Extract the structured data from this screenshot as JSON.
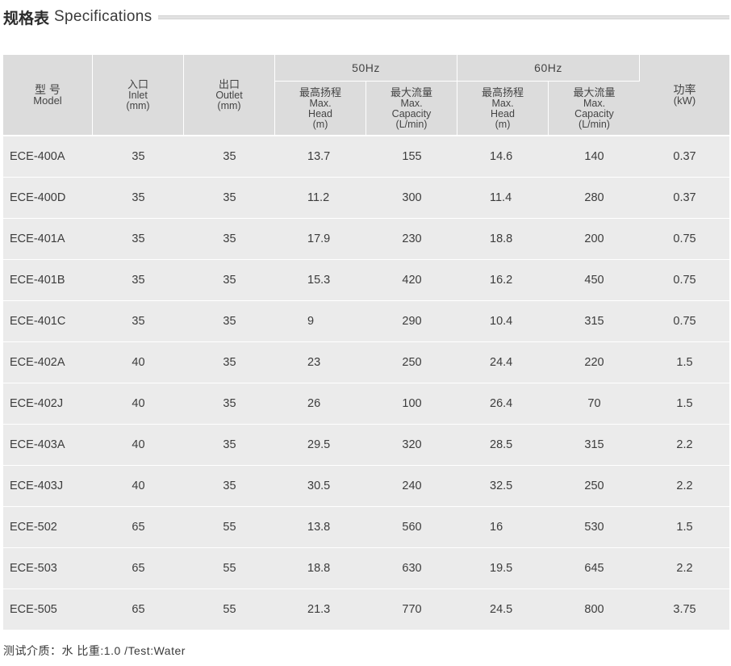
{
  "title": {
    "cn": "规格表",
    "en": "Specifications"
  },
  "header": {
    "model": {
      "cn": "型 号",
      "en": "Model"
    },
    "inlet": {
      "cn": "入口",
      "en": "Inlet",
      "unit": "(mm)"
    },
    "outlet": {
      "cn": "出口",
      "en": "Outlet",
      "unit": "(mm)"
    },
    "hz50": "50Hz",
    "hz60": "60Hz",
    "head": {
      "cn": "最高扬程",
      "en1": "Max.",
      "en2": "Head",
      "unit": "(m)"
    },
    "capacity": {
      "cn": "最大流量",
      "en1": "Max.",
      "en2": "Capacity",
      "unit": "(L/min)"
    },
    "power": {
      "cn": "功率",
      "unit": "(kW)"
    }
  },
  "rows": [
    [
      "ECE-400A",
      "35",
      "35",
      "13.7",
      "155",
      "14.6",
      "140",
      "0.37"
    ],
    [
      "ECE-400D",
      "35",
      "35",
      "11.2",
      "300",
      "11.4",
      "280",
      "0.37"
    ],
    [
      "ECE-401A",
      "35",
      "35",
      "17.9",
      "230",
      "18.8",
      "200",
      "0.75"
    ],
    [
      "ECE-401B",
      "35",
      "35",
      "15.3",
      "420",
      "16.2",
      "450",
      "0.75"
    ],
    [
      "ECE-401C",
      "35",
      "35",
      "9",
      "290",
      "10.4",
      "315",
      "0.75"
    ],
    [
      "ECE-402A",
      "40",
      "35",
      "23",
      "250",
      "24.4",
      "220",
      "1.5"
    ],
    [
      "ECE-402J",
      "40",
      "35",
      "26",
      "100",
      "26.4",
      "70",
      "1.5"
    ],
    [
      "ECE-403A",
      "40",
      "35",
      "29.5",
      "320",
      "28.5",
      "315",
      "2.2"
    ],
    [
      "ECE-403J",
      "40",
      "35",
      "30.5",
      "240",
      "32.5",
      "250",
      "2.2"
    ],
    [
      "ECE-502",
      "65",
      "55",
      "13.8",
      "560",
      "16",
      "530",
      "1.5"
    ],
    [
      "ECE-503",
      "65",
      "55",
      "18.8",
      "630",
      "19.5",
      "645",
      "2.2"
    ],
    [
      "ECE-505",
      "65",
      "55",
      "21.3",
      "770",
      "24.5",
      "800",
      "3.75"
    ]
  ],
  "footnote": "测试介质：水 比重:1.0 /Test:Water"
}
